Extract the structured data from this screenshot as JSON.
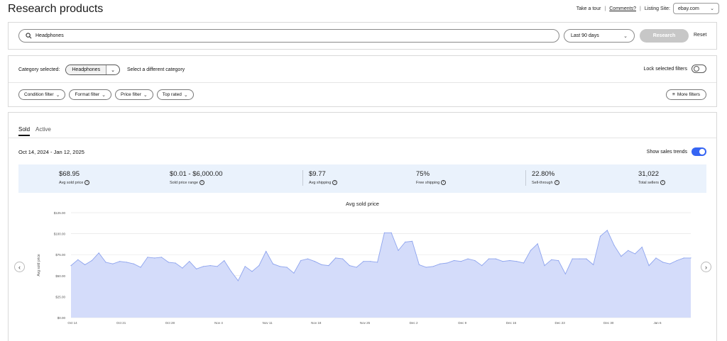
{
  "header": {
    "title": "Research products",
    "take_tour": "Take a tour",
    "comments": "Comments?",
    "listing_site_label": "Listing Site:",
    "listing_site_value": "ebay.com"
  },
  "search": {
    "query": "Headphones",
    "range": "Last 90 days",
    "research_label": "Research",
    "reset_label": "Reset"
  },
  "category": {
    "label": "Category selected:",
    "selected": "Headphones",
    "change_link": "Select a different category",
    "lock_label": "Lock selected filters",
    "lock_on": false
  },
  "filters": {
    "pills": [
      "Condition filter",
      "Format filter",
      "Price filter",
      "Top rated"
    ],
    "more_label": "More filters"
  },
  "results": {
    "tabs": [
      {
        "label": "Sold",
        "active": true
      },
      {
        "label": "Active",
        "active": false
      }
    ],
    "date_range": "Oct 14, 2024 - Jan 12, 2025",
    "trends_label": "Show sales trends",
    "trends_on": true
  },
  "stats": [
    {
      "value": "$68.95",
      "label": "Avg sold price"
    },
    {
      "value": "$0.01 - $6,000.00",
      "label": "Sold price range"
    },
    {
      "value": "$9.77",
      "label": "Avg shipping"
    },
    {
      "value": "75%",
      "label": "Free shipping"
    },
    {
      "value": "22.80%",
      "label": "Sell-through"
    },
    {
      "value": "31,022",
      "label": "Total sellers"
    }
  ],
  "colors": {
    "accent": "#3665f3",
    "area_fill": "#d4dcfa",
    "area_line": "#8ea4ee",
    "stats_bg": "#eaf2fc"
  },
  "chart_data": {
    "type": "area",
    "title": "Avg sold price",
    "ylabel": "Avg sold price",
    "xlabel": "",
    "ylim": [
      0,
      125
    ],
    "yticks": [
      "$0.00",
      "$25.00",
      "$50.00",
      "$75.00",
      "$100.00",
      "$125.00"
    ],
    "ytick_values": [
      0,
      25,
      50,
      75,
      100,
      125
    ],
    "xticks": [
      "Oct 14",
      "Oct 21",
      "Oct 28",
      "Nov 4",
      "Nov 11",
      "Nov 18",
      "Nov 25",
      "Dec 2",
      "Dec 9",
      "Dec 16",
      "Dec 23",
      "Dec 30",
      "Jan 6"
    ],
    "xtick_index": [
      0,
      7,
      14,
      21,
      28,
      35,
      42,
      49,
      56,
      63,
      70,
      77,
      84
    ],
    "grid": true,
    "values": [
      62,
      69,
      63,
      68,
      77,
      66,
      64,
      67,
      66,
      64,
      60,
      72,
      71,
      72,
      66,
      65,
      59,
      67,
      58,
      61,
      62,
      61,
      68,
      55,
      44,
      61,
      55,
      62,
      79,
      64,
      61,
      60,
      53,
      68,
      70,
      67,
      63,
      62,
      71,
      70,
      62,
      60,
      67,
      67,
      66,
      101,
      101,
      80,
      90,
      91,
      63,
      60,
      61,
      64,
      65,
      68,
      67,
      70,
      68,
      62,
      70,
      70,
      67,
      68,
      67,
      65,
      80,
      88,
      62,
      69,
      68,
      52,
      70,
      70,
      70,
      63,
      97,
      104,
      86,
      73,
      80,
      76,
      84,
      62,
      71,
      66,
      64,
      68,
      71,
      71
    ]
  }
}
